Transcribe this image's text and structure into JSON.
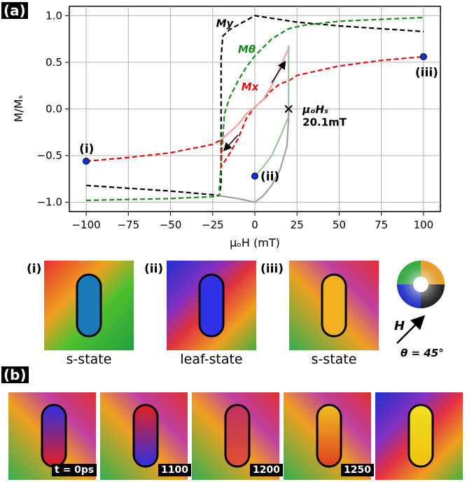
{
  "panel_a_label": "(a)",
  "panel_b_label": "(b)",
  "chart_data": {
    "type": "line",
    "xlabel": "μₒH (mT)",
    "ylabel": "M/Mₛ",
    "xlim": [
      -110,
      110
    ],
    "ylim": [
      -1.1,
      1.1
    ],
    "xticks": [
      "−100",
      "−75",
      "−50",
      "−25",
      "0",
      "25",
      "50",
      "75",
      "100"
    ],
    "xtick_values": [
      -100,
      -75,
      -50,
      -25,
      0,
      25,
      50,
      75,
      100
    ],
    "yticks": [
      "−1.0",
      "−0.5",
      "0.0",
      "0.5",
      "1.0"
    ],
    "ytick_values": [
      -1.0,
      -0.5,
      0.0,
      0.5,
      1.0
    ],
    "grid": true,
    "series": [
      {
        "name": "My",
        "color": "#000000",
        "style": "dashed",
        "x": [
          -100,
          -75,
          -50,
          -25,
          -21,
          -20,
          -20,
          -19,
          -15,
          -10,
          -5,
          0,
          25,
          50,
          75,
          100
        ],
        "y": [
          -0.82,
          -0.85,
          -0.88,
          -0.92,
          -0.93,
          -0.8,
          0.55,
          0.78,
          0.85,
          0.9,
          0.95,
          1.0,
          0.93,
          0.89,
          0.86,
          0.83
        ]
      },
      {
        "name": "Mθ",
        "color": "#1a8a1a",
        "style": "dashed",
        "x": [
          -100,
          -75,
          -50,
          -25,
          -21,
          -21,
          -18,
          -15,
          -10,
          -5,
          0,
          5,
          10,
          20,
          30,
          50,
          75,
          100
        ],
        "y": [
          -0.98,
          -0.97,
          -0.96,
          -0.94,
          -0.93,
          -0.85,
          -0.05,
          0.12,
          0.3,
          0.45,
          0.57,
          0.66,
          0.75,
          0.86,
          0.9,
          0.94,
          0.96,
          0.98
        ]
      },
      {
        "name": "Mx",
        "color": "#e01010",
        "style": "dashed",
        "x": [
          -100,
          -75,
          -50,
          -25,
          -20,
          -20,
          -15,
          -10,
          -5,
          0,
          5,
          10,
          15,
          20,
          25,
          50,
          75,
          100
        ],
        "y": [
          -0.56,
          -0.52,
          -0.47,
          -0.38,
          -0.33,
          -0.62,
          -0.48,
          -0.32,
          -0.1,
          0.02,
          0.1,
          0.2,
          0.27,
          0.3,
          0.36,
          0.46,
          0.52,
          0.56
        ]
      },
      {
        "name": "",
        "color": "#f4a0a0",
        "style": "solid",
        "x": [
          -20,
          -15,
          -10,
          -5,
          0,
          5,
          10,
          15,
          20
        ],
        "y": [
          -0.33,
          -0.25,
          -0.17,
          -0.05,
          0.02,
          0.1,
          0.25,
          0.45,
          0.65
        ]
      },
      {
        "name": "",
        "color": "#98c898",
        "style": "solid",
        "x": [
          0,
          5,
          10,
          15,
          20,
          20
        ],
        "y": [
          -0.72,
          -0.62,
          -0.5,
          -0.3,
          -0.08,
          0.68
        ]
      },
      {
        "name": "",
        "color": "#a0a0a0",
        "style": "solid",
        "x": [
          -21,
          -10,
          -5,
          0,
          5,
          10,
          15,
          19,
          20,
          20
        ],
        "y": [
          -0.93,
          -0.96,
          -0.98,
          -1.0,
          -0.93,
          -0.82,
          -0.65,
          -0.4,
          -0.1,
          0.0
        ]
      }
    ],
    "markers": [
      {
        "label": "(i)",
        "x": -100,
        "y": -0.56,
        "color": "#1030e0"
      },
      {
        "label": "(ii)",
        "x": 0,
        "y": -0.72,
        "color": "#1030e0"
      },
      {
        "label": "(iii)",
        "x": 100,
        "y": 0.56,
        "color": "#1030e0"
      }
    ],
    "hs_marker": {
      "x": 20,
      "y": 0.0,
      "label_line1": "μₒHₛ",
      "label_line2": "20.1mT"
    },
    "series_labels": [
      {
        "text": "My",
        "color": "#000000",
        "x": -23,
        "y": 0.88
      },
      {
        "text": "Mθ",
        "color": "#1a8a1a",
        "x": -10,
        "y": 0.6
      },
      {
        "text": "Mx",
        "color": "#e01010",
        "x": -8,
        "y": 0.2
      }
    ]
  },
  "snapshots": [
    {
      "label": "(i)",
      "caption": "s-state",
      "core_color": "#1a7ab8"
    },
    {
      "label": "(ii)",
      "caption": "leaf-state",
      "core_color": "#3030e8"
    },
    {
      "label": "(iii)",
      "caption": "s-state",
      "core_color": "#f0b020"
    }
  ],
  "field_legend": {
    "field_label": "H",
    "angle_label": "θ = 45°"
  },
  "time_frames": [
    {
      "label": "t = 0ps"
    },
    {
      "label": "1100"
    },
    {
      "label": "1200"
    },
    {
      "label": "1250"
    },
    {
      "label": ""
    }
  ]
}
